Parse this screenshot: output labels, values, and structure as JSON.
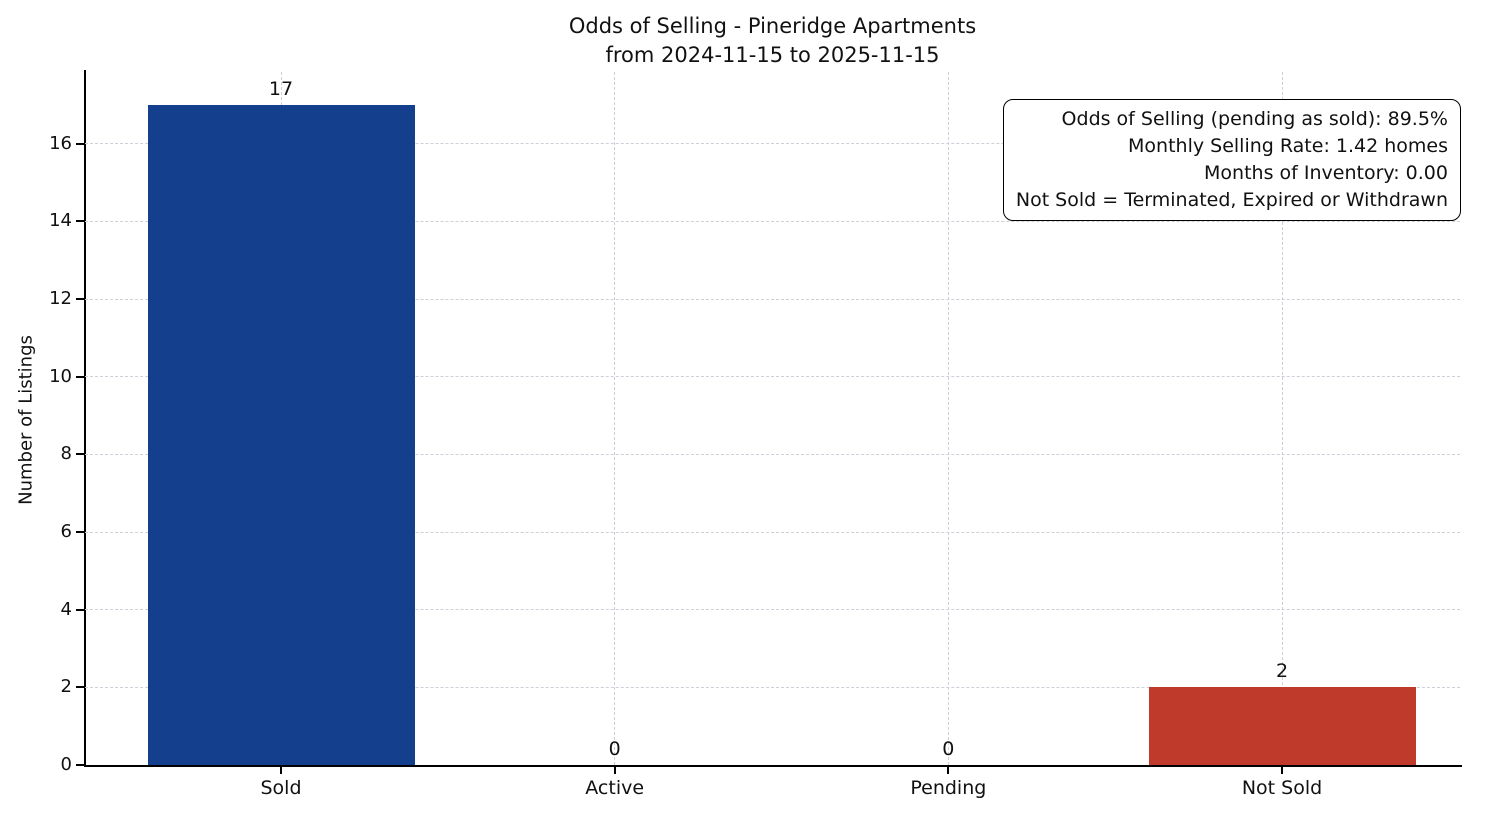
{
  "figure": {
    "title_line1": "Odds of Selling - Pineridge Apartments",
    "title_line2": "from 2024-11-15 to 2025-11-15"
  },
  "annotation_box": {
    "lines": [
      "Odds of Selling (pending as sold): 89.5%",
      "Monthly Selling Rate: 1.42 homes",
      "Months of Inventory: 0.00",
      "Not Sold = Terminated, Expired or Withdrawn"
    ]
  },
  "chart_data": {
    "type": "bar",
    "title": "Odds of Selling - Pineridge Apartments\nfrom 2024-11-15 to 2025-11-15",
    "categories": [
      "Sold",
      "Active",
      "Pending",
      "Not Sold"
    ],
    "values": [
      17,
      0,
      0,
      2
    ],
    "value_labels": [
      "17",
      "0",
      "0",
      "2"
    ],
    "bar_colors": [
      "#143f8c",
      null,
      null,
      "#c03a2b"
    ],
    "xlabel": "",
    "ylabel": "Number of Listings",
    "yticks": [
      0,
      2,
      4,
      6,
      8,
      10,
      12,
      14,
      16
    ],
    "ylim": [
      0,
      17.85
    ],
    "grid": "dashed",
    "grid_color": "#ccd1d9",
    "legend": "none",
    "annotation_position": "top-right"
  }
}
